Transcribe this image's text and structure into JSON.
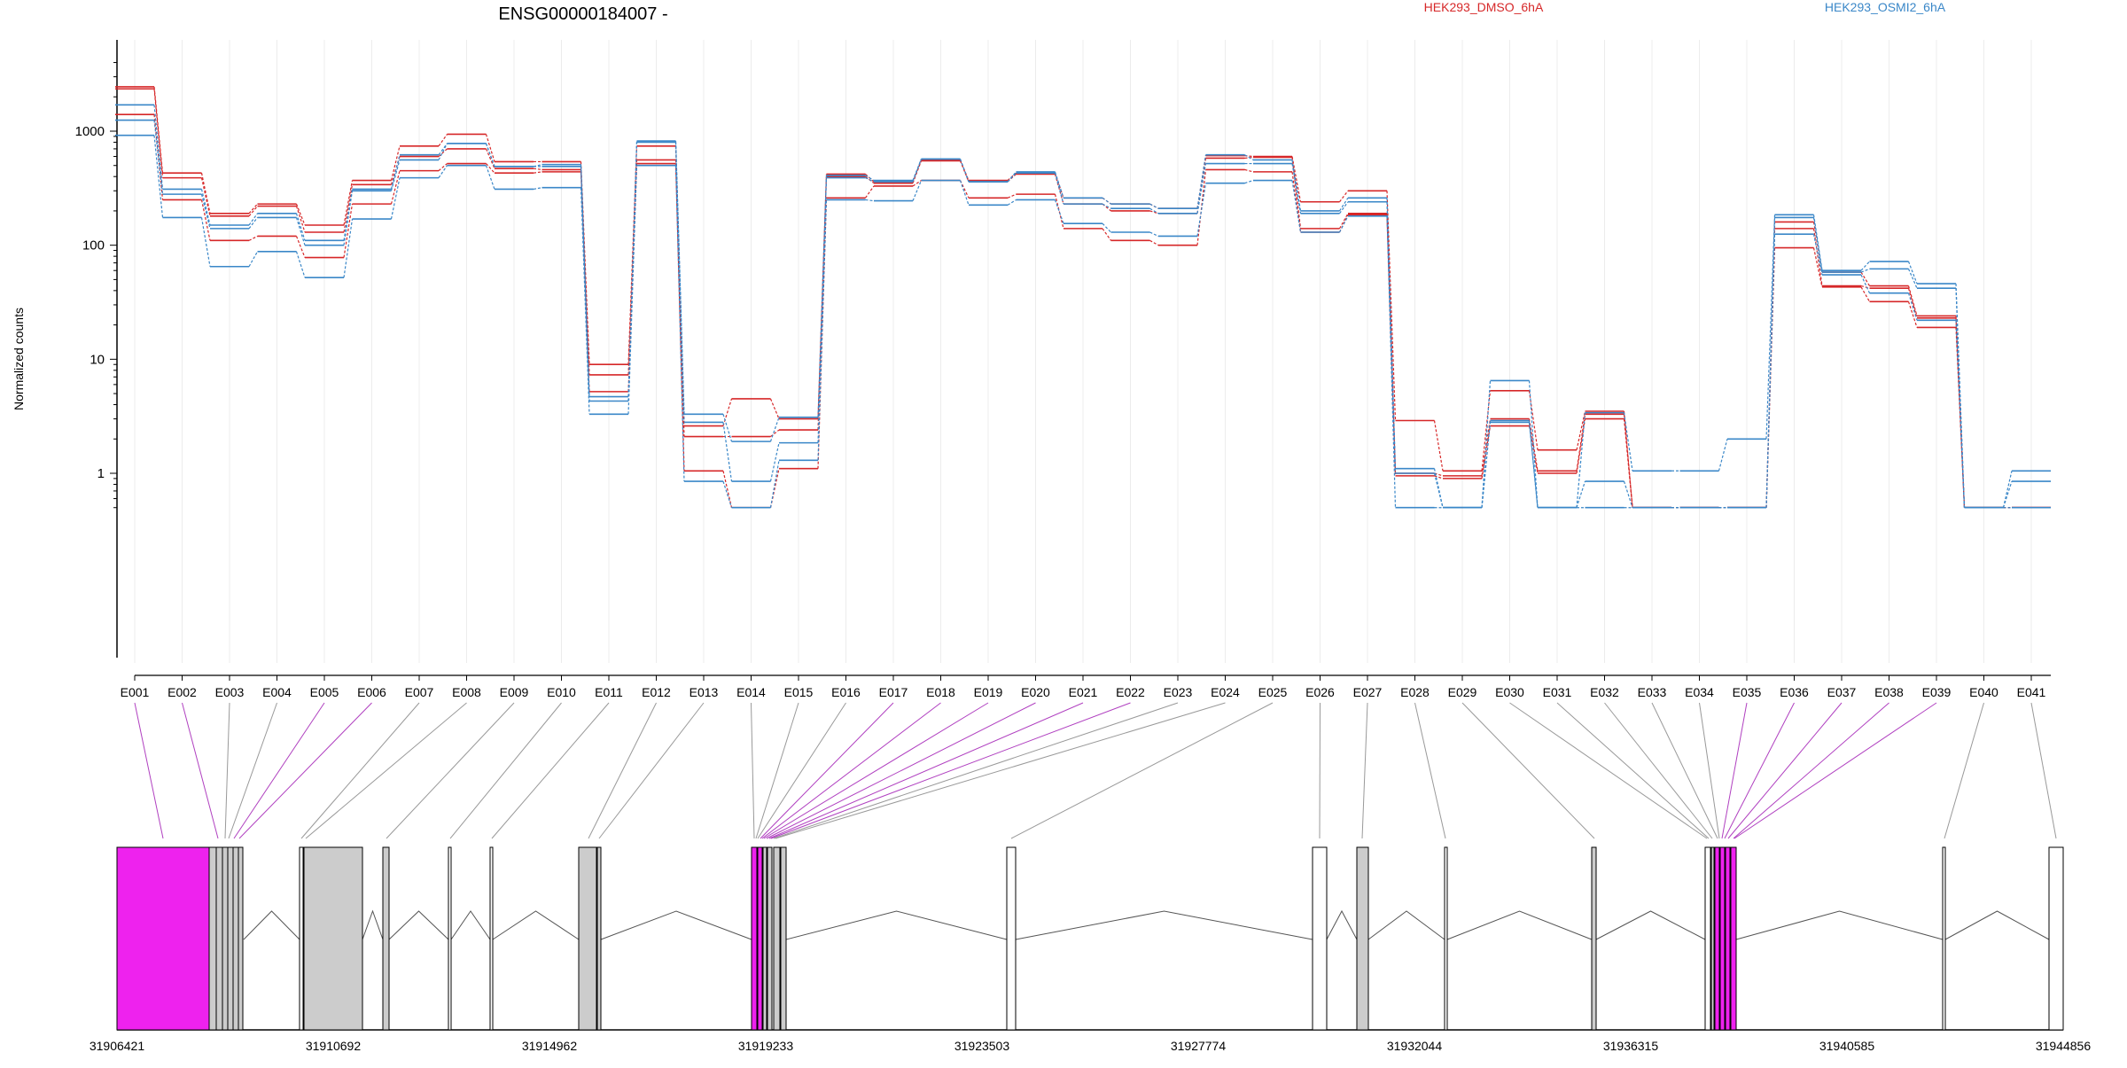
{
  "chart_data": {
    "type": "line",
    "title": "ENSG00000184007 -",
    "ylabel": "Normalized counts",
    "y_scale": "log",
    "yticks": [
      1,
      10,
      100,
      1000
    ],
    "legend_placement": "top",
    "grid": "vertical only",
    "categories": [
      "E001",
      "E002",
      "E003",
      "E004",
      "E005",
      "E006",
      "E007",
      "E008",
      "E009",
      "E010",
      "E011",
      "E012",
      "E013",
      "E014",
      "E015",
      "E016",
      "E017",
      "E018",
      "E019",
      "E020",
      "E021",
      "E022",
      "E023",
      "E024",
      "E025",
      "E026",
      "E027",
      "E028",
      "E029",
      "E030",
      "E031",
      "E032",
      "E033",
      "E034",
      "E035",
      "E036",
      "E037",
      "E038",
      "E039",
      "E040",
      "E041"
    ],
    "highlighted_bins": [
      "E001",
      "E002",
      "E005",
      "E006",
      "E017",
      "E018",
      "E019",
      "E020",
      "E021",
      "E022",
      "E035",
      "E036",
      "E037",
      "E038",
      "E039"
    ],
    "series": [
      {
        "name": "HEK293_DMSO_6hA",
        "color": "#d62728",
        "values": [
          2450,
          430,
          190,
          230,
          150,
          370,
          740,
          940,
          540,
          540,
          9,
          740,
          2.6,
          4.5,
          3.0,
          420,
          360,
          560,
          370,
          430,
          260,
          230,
          210,
          610,
          600,
          240,
          300,
          2.9,
          1.05,
          5.3,
          1.6,
          3.5,
          0.5,
          0.5,
          0.5,
          160,
          58,
          44,
          24,
          0.5,
          0.5
        ]
      },
      {
        "name": "HEK293_DMSO_6hA",
        "color": "#d62728",
        "values": [
          2350,
          390,
          180,
          220,
          130,
          340,
          600,
          700,
          470,
          460,
          7.3,
          560,
          2.1,
          2.1,
          2.4,
          400,
          350,
          550,
          360,
          420,
          230,
          200,
          190,
          580,
          590,
          140,
          190,
          1.0,
          0.95,
          3.0,
          1.05,
          3.3,
          0.5,
          0.5,
          0.5,
          140,
          44,
          42,
          23,
          0.5,
          0.5
        ]
      },
      {
        "name": "HEK293_DMSO_6hA",
        "color": "#d62728",
        "values": [
          1400,
          250,
          110,
          120,
          78,
          230,
          450,
          520,
          430,
          440,
          5.2,
          520,
          1.05,
          0.5,
          1.1,
          260,
          330,
          370,
          260,
          280,
          140,
          110,
          100,
          460,
          440,
          130,
          185,
          0.95,
          0.9,
          2.6,
          1.0,
          3.0,
          0.5,
          0.5,
          0.5,
          95,
          43,
          32,
          19,
          0.5,
          0.5
        ]
      },
      {
        "name": "HEK293_OSMI2_6hA",
        "color": "#3a87c8",
        "values": [
          1700,
          310,
          150,
          190,
          110,
          310,
          620,
          780,
          490,
          490,
          4.7,
          820,
          3.3,
          1.9,
          3.1,
          410,
          370,
          570,
          360,
          440,
          260,
          230,
          210,
          620,
          560,
          200,
          260,
          1.1,
          0.5,
          6.5,
          0.5,
          3.4,
          1.05,
          1.05,
          2.0,
          185,
          60,
          72,
          46,
          0.5,
          1.05
        ]
      },
      {
        "name": "HEK293_OSMI2_6hA",
        "color": "#3a87c8",
        "values": [
          1250,
          280,
          140,
          175,
          100,
          300,
          560,
          780,
          490,
          510,
          4.3,
          800,
          2.8,
          0.85,
          1.85,
          390,
          360,
          570,
          360,
          430,
          230,
          210,
          190,
          520,
          520,
          190,
          240,
          1.0,
          0.5,
          2.9,
          0.5,
          0.85,
          0.5,
          0.5,
          0.5,
          175,
          58,
          62,
          42,
          0.5,
          0.85
        ]
      },
      {
        "name": "HEK293_OSMI2_6hA",
        "color": "#3a87c8",
        "values": [
          920,
          175,
          65,
          88,
          52,
          170,
          390,
          500,
          310,
          320,
          3.3,
          500,
          0.85,
          0.5,
          1.3,
          250,
          245,
          370,
          225,
          250,
          155,
          130,
          120,
          350,
          370,
          130,
          180,
          0.5,
          0.5,
          2.8,
          0.5,
          0.5,
          0.5,
          0.5,
          0.5,
          125,
          55,
          38,
          22,
          0.5,
          0.5
        ]
      }
    ],
    "genomic_axis_labels": [
      "31906421",
      "31910692",
      "31914962",
      "31919233",
      "31923503",
      "31927774",
      "31932044",
      "31936315",
      "31940585",
      "31944856"
    ]
  },
  "legend": {
    "dmso": "HEK293_DMSO_6hA",
    "osmi": "HEK293_OSMI2_6hA",
    "dmso_color": "#d62728",
    "osmi_color": "#3a87c8"
  },
  "colors": {
    "highlight": "#ee22ee",
    "exon_gray": "#cccccc",
    "link_gray": "#999999",
    "link_magenta": "#b040c0"
  }
}
